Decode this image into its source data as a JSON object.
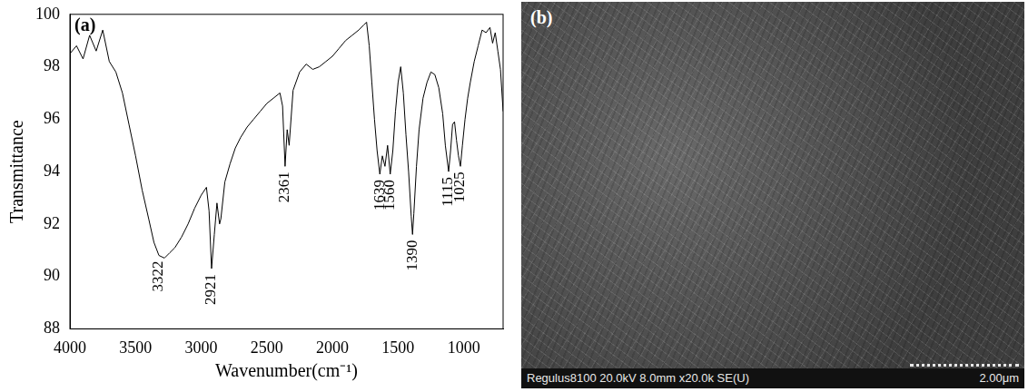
{
  "chart_data": {
    "type": "line",
    "panel": "(a)",
    "x_label": "Wavenumber(cm⁻¹)",
    "y_label": "Transmittance",
    "x": [
      4000,
      3950,
      3900,
      3850,
      3800,
      3750,
      3700,
      3650,
      3600,
      3550,
      3500,
      3450,
      3400,
      3360,
      3322,
      3280,
      3240,
      3200,
      3150,
      3100,
      3050,
      3000,
      2960,
      2940,
      2921,
      2900,
      2880,
      2860,
      2850,
      2820,
      2780,
      2740,
      2700,
      2650,
      2600,
      2550,
      2500,
      2450,
      2400,
      2380,
      2361,
      2345,
      2330,
      2300,
      2250,
      2200,
      2150,
      2100,
      2050,
      2000,
      1950,
      1900,
      1850,
      1800,
      1760,
      1740,
      1720,
      1700,
      1680,
      1660,
      1639,
      1620,
      1600,
      1580,
      1560,
      1540,
      1520,
      1500,
      1480,
      1460,
      1440,
      1420,
      1400,
      1390,
      1380,
      1360,
      1340,
      1310,
      1280,
      1250,
      1220,
      1190,
      1160,
      1140,
      1115,
      1100,
      1085,
      1070,
      1055,
      1040,
      1025,
      1010,
      990,
      970,
      950,
      920,
      890,
      860,
      830,
      800,
      780,
      760,
      740,
      720,
      700
    ],
    "values": [
      98.5,
      98.8,
      98.3,
      99.2,
      98.6,
      99.4,
      98.2,
      97.8,
      97.0,
      95.8,
      94.6,
      93.3,
      92.2,
      91.3,
      90.8,
      90.7,
      90.9,
      91.1,
      91.5,
      92.0,
      92.6,
      93.1,
      93.4,
      92.5,
      90.3,
      91.6,
      92.8,
      92.0,
      92.2,
      93.6,
      94.3,
      94.9,
      95.3,
      95.7,
      96.0,
      96.3,
      96.6,
      96.8,
      97.0,
      96.5,
      94.2,
      95.6,
      95.0,
      97.1,
      97.8,
      98.1,
      97.9,
      98.0,
      98.2,
      98.4,
      98.7,
      99.0,
      99.2,
      99.4,
      99.6,
      99.7,
      98.8,
      97.4,
      96.0,
      94.8,
      93.9,
      94.6,
      94.2,
      95.0,
      93.9,
      94.8,
      96.3,
      97.4,
      98.0,
      97.0,
      95.4,
      94.0,
      92.3,
      91.6,
      92.4,
      94.2,
      95.6,
      96.8,
      97.4,
      97.8,
      97.7,
      97.2,
      96.2,
      95.0,
      94.0,
      94.8,
      95.8,
      95.9,
      95.2,
      94.6,
      94.2,
      95.0,
      96.0,
      96.8,
      97.4,
      98.2,
      98.8,
      99.4,
      99.3,
      99.5,
      98.9,
      99.3,
      98.6,
      97.9,
      96.3
    ],
    "color": "#000000",
    "xlim": [
      4000,
      700
    ],
    "xticks": [
      4000,
      3500,
      3000,
      2500,
      2000,
      1500,
      1000
    ],
    "ylim": [
      88,
      100
    ],
    "yticks": [
      88,
      90,
      92,
      94,
      96,
      98,
      100
    ],
    "grid": false,
    "annotations": [
      {
        "x": 3322,
        "text": "3322"
      },
      {
        "x": 2921,
        "text": "2921"
      },
      {
        "x": 2361,
        "text": "2361"
      },
      {
        "x": 1639,
        "text": "1639"
      },
      {
        "x": 1560,
        "text": "1560"
      },
      {
        "x": 1390,
        "text": "1390"
      },
      {
        "x": 1115,
        "text": "1115"
      },
      {
        "x": 1025,
        "text": "1025"
      }
    ]
  },
  "image_panel": {
    "panel": "(b)",
    "caption": "Regulus8100 20.0kV 8.0mm x20.0k SE(U)",
    "scale_label": "2.00μm"
  }
}
